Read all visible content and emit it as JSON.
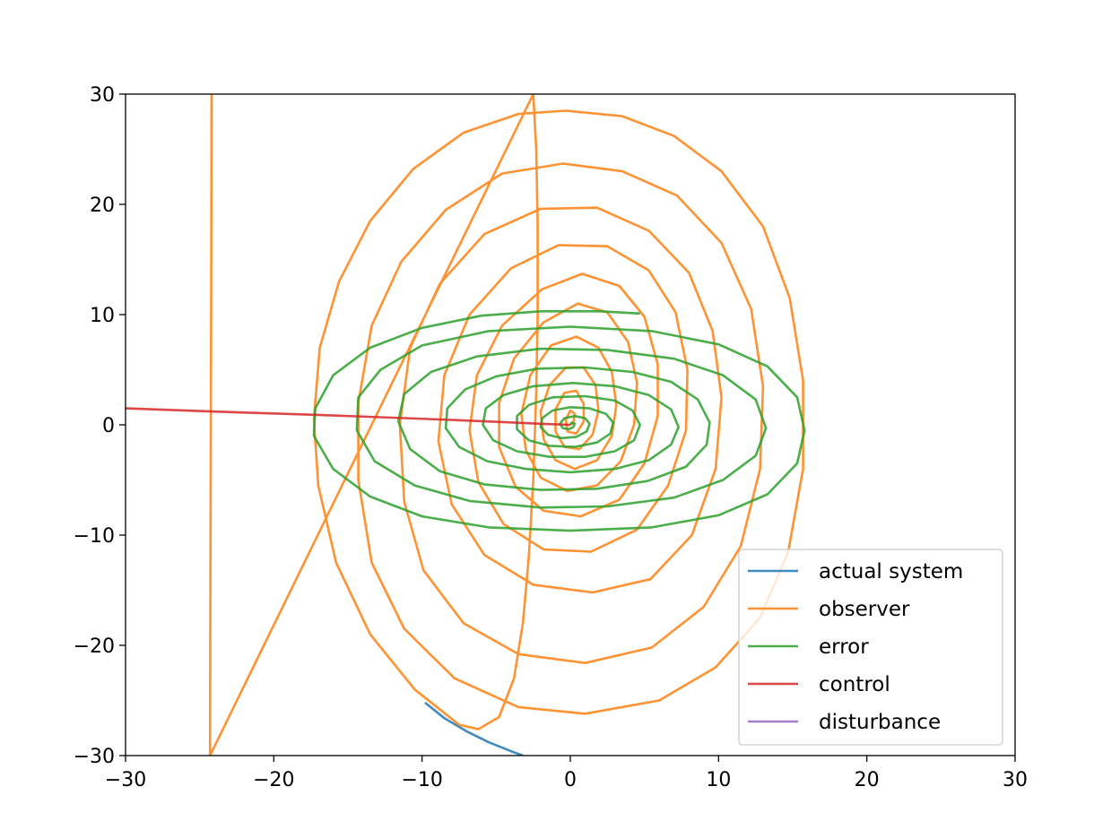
{
  "chart_data": {
    "type": "line",
    "title": "",
    "xlabel": "",
    "ylabel": "",
    "xlim": [
      -30,
      30
    ],
    "ylim": [
      -30,
      30
    ],
    "xticks": [
      -30,
      -20,
      -10,
      0,
      10,
      20,
      30
    ],
    "yticks": [
      -30,
      -20,
      -10,
      0,
      10,
      20,
      30
    ],
    "xtick_labels": [
      "−30",
      "−20",
      "−10",
      "0",
      "10",
      "20",
      "30"
    ],
    "ytick_labels": [
      "−30",
      "−20",
      "−10",
      "0",
      "10",
      "20",
      "30"
    ],
    "grid": false,
    "legend_position": "lower-right",
    "series": [
      {
        "name": "actual system",
        "color": "#1f77b4",
        "points": [
          [
            -9.8,
            -25.2
          ],
          [
            -8.5,
            -26.6
          ],
          [
            -7.0,
            -27.8
          ],
          [
            -5.5,
            -28.8
          ],
          [
            -4.0,
            -29.6
          ],
          [
            -3.2,
            -30.0
          ]
        ]
      },
      {
        "name": "observer",
        "color": "#ff7f0e",
        "points": [
          [
            -24.2,
            30.0
          ],
          [
            -24.22,
            15.0
          ],
          [
            -24.25,
            0.0
          ],
          [
            -24.28,
            -15.0
          ],
          [
            -24.3,
            -30.0
          ],
          [
            -2.5,
            30.0
          ],
          [
            -2.3,
            25.0
          ],
          [
            -2.2,
            18.0
          ],
          [
            -2.2,
            10.0
          ],
          [
            -2.3,
            3.0
          ],
          [
            -2.5,
            -5.0
          ],
          [
            -2.8,
            -12.0
          ],
          [
            -3.2,
            -18.0
          ],
          [
            -3.8,
            -23.0
          ],
          [
            -4.8,
            -26.5
          ],
          [
            -6.2,
            -27.6
          ],
          [
            -7.5,
            -27.2
          ],
          [
            -10.5,
            -24.0
          ],
          [
            -13.5,
            -19.0
          ],
          [
            -15.8,
            -12.5
          ],
          [
            -17.0,
            -5.5
          ],
          [
            -17.3,
            0.5
          ],
          [
            -16.9,
            7.0
          ],
          [
            -15.6,
            13.0
          ],
          [
            -13.5,
            18.5
          ],
          [
            -10.6,
            23.2
          ],
          [
            -7.2,
            26.5
          ],
          [
            -3.5,
            28.2
          ],
          [
            -0.3,
            28.5
          ],
          [
            3.5,
            28.0
          ],
          [
            7.0,
            26.2
          ],
          [
            10.2,
            23.0
          ],
          [
            13.0,
            18.0
          ],
          [
            14.8,
            11.5
          ],
          [
            15.7,
            4.0
          ],
          [
            15.7,
            -4.0
          ],
          [
            14.7,
            -11.5
          ],
          [
            12.8,
            -17.5
          ],
          [
            9.8,
            -22.0
          ],
          [
            6.0,
            -25.0
          ],
          [
            1.0,
            -26.2
          ],
          [
            -3.5,
            -25.6
          ],
          [
            -7.8,
            -23.0
          ],
          [
            -11.2,
            -18.5
          ],
          [
            -13.4,
            -12.5
          ],
          [
            -14.3,
            -5.0
          ],
          [
            -14.3,
            2.0
          ],
          [
            -13.4,
            9.0
          ],
          [
            -11.4,
            14.8
          ],
          [
            -8.4,
            19.5
          ],
          [
            -4.6,
            22.8
          ],
          [
            -0.5,
            23.7
          ],
          [
            3.5,
            23.0
          ],
          [
            7.2,
            20.8
          ],
          [
            10.2,
            16.5
          ],
          [
            12.2,
            10.5
          ],
          [
            13.0,
            3.5
          ],
          [
            12.8,
            -4.0
          ],
          [
            11.5,
            -11.0
          ],
          [
            9.0,
            -16.5
          ],
          [
            5.5,
            -20.2
          ],
          [
            1.0,
            -21.6
          ],
          [
            -3.5,
            -20.8
          ],
          [
            -7.2,
            -18.0
          ],
          [
            -9.9,
            -13.2
          ],
          [
            -11.2,
            -7.0
          ],
          [
            -11.5,
            0.0
          ],
          [
            -10.8,
            7.0
          ],
          [
            -8.8,
            12.8
          ],
          [
            -5.8,
            17.3
          ],
          [
            -2.0,
            19.6
          ],
          [
            1.8,
            19.7
          ],
          [
            5.3,
            17.6
          ],
          [
            8.0,
            13.8
          ],
          [
            9.6,
            8.5
          ],
          [
            10.2,
            2.5
          ],
          [
            9.8,
            -4.0
          ],
          [
            8.2,
            -10.0
          ],
          [
            5.4,
            -14.0
          ],
          [
            1.5,
            -15.2
          ],
          [
            -2.5,
            -14.5
          ],
          [
            -5.8,
            -11.8
          ],
          [
            -8.0,
            -7.2
          ],
          [
            -8.9,
            -1.5
          ],
          [
            -8.5,
            4.5
          ],
          [
            -6.8,
            10.0
          ],
          [
            -4.0,
            14.2
          ],
          [
            -0.8,
            16.3
          ],
          [
            2.5,
            16.2
          ],
          [
            5.3,
            14.0
          ],
          [
            7.1,
            10.2
          ],
          [
            7.9,
            5.0
          ],
          [
            7.8,
            -0.5
          ],
          [
            6.6,
            -5.5
          ],
          [
            4.5,
            -9.5
          ],
          [
            1.4,
            -11.5
          ],
          [
            -1.8,
            -11.3
          ],
          [
            -4.5,
            -9.0
          ],
          [
            -6.2,
            -5.2
          ],
          [
            -6.8,
            -0.5
          ],
          [
            -6.3,
            4.5
          ],
          [
            -4.6,
            9.0
          ],
          [
            -1.9,
            12.3
          ],
          [
            0.8,
            13.7
          ],
          [
            3.3,
            12.6
          ],
          [
            5.0,
            9.8
          ],
          [
            5.9,
            5.5
          ],
          [
            5.9,
            0.8
          ],
          [
            5.0,
            -3.5
          ],
          [
            3.3,
            -6.8
          ],
          [
            0.7,
            -8.3
          ],
          [
            -1.8,
            -7.8
          ],
          [
            -3.7,
            -5.6
          ],
          [
            -4.8,
            -2.0
          ],
          [
            -4.8,
            2.0
          ],
          [
            -3.8,
            6.0
          ],
          [
            -1.8,
            9.3
          ],
          [
            0.5,
            11.0
          ],
          [
            2.5,
            10.2
          ],
          [
            3.9,
            7.5
          ],
          [
            4.5,
            3.8
          ],
          [
            4.3,
            0.0
          ],
          [
            3.4,
            -3.3
          ],
          [
            1.8,
            -5.5
          ],
          [
            -0.2,
            -6.0
          ],
          [
            -2.0,
            -4.8
          ],
          [
            -3.0,
            -2.3
          ],
          [
            -3.3,
            1.0
          ],
          [
            -2.7,
            4.5
          ],
          [
            -1.3,
            7.2
          ],
          [
            0.4,
            8.0
          ],
          [
            1.9,
            7.0
          ],
          [
            2.8,
            4.8
          ],
          [
            3.1,
            1.8
          ],
          [
            2.8,
            -1.0
          ],
          [
            1.8,
            -3.2
          ],
          [
            0.3,
            -4.0
          ],
          [
            -1.0,
            -3.2
          ],
          [
            -1.8,
            -1.3
          ],
          [
            -2.0,
            1.2
          ],
          [
            -1.4,
            3.6
          ],
          [
            -0.3,
            5.2
          ],
          [
            0.9,
            5.2
          ],
          [
            1.7,
            3.6
          ],
          [
            1.9,
            1.3
          ],
          [
            1.5,
            -0.9
          ],
          [
            0.6,
            -2.2
          ],
          [
            -0.4,
            -2.0
          ],
          [
            -1.0,
            -0.6
          ],
          [
            -1.0,
            1.4
          ],
          [
            -0.4,
            2.9
          ],
          [
            0.4,
            3.1
          ],
          [
            0.9,
            1.9
          ],
          [
            0.9,
            0.3
          ],
          [
            0.4,
            -0.8
          ],
          [
            -0.2,
            -0.6
          ],
          [
            -0.3,
            0.5
          ],
          [
            0.0,
            1.3
          ],
          [
            0.3,
            1.0
          ],
          [
            0.2,
            0.2
          ],
          [
            0.0,
            0.0
          ]
        ]
      },
      {
        "name": "error",
        "color": "#2ca02c",
        "points": [
          [
            4.7,
            10.1
          ],
          [
            2.0,
            10.3
          ],
          [
            -2.0,
            10.3
          ],
          [
            -6.0,
            9.9
          ],
          [
            -10.0,
            8.8
          ],
          [
            -13.5,
            7.0
          ],
          [
            -16.0,
            4.5
          ],
          [
            -17.2,
            1.5
          ],
          [
            -17.3,
            -1.0
          ],
          [
            -16.0,
            -4.0
          ],
          [
            -13.5,
            -6.5
          ],
          [
            -10.0,
            -8.3
          ],
          [
            -5.5,
            -9.3
          ],
          [
            0.0,
            -9.6
          ],
          [
            5.5,
            -9.3
          ],
          [
            10.0,
            -8.2
          ],
          [
            13.3,
            -6.3
          ],
          [
            15.3,
            -3.5
          ],
          [
            15.8,
            -0.5
          ],
          [
            15.3,
            2.5
          ],
          [
            13.3,
            5.3
          ],
          [
            10.0,
            7.3
          ],
          [
            5.5,
            8.5
          ],
          [
            0.0,
            8.9
          ],
          [
            -5.5,
            8.5
          ],
          [
            -10.0,
            7.2
          ],
          [
            -12.8,
            5.0
          ],
          [
            -14.3,
            2.5
          ],
          [
            -14.4,
            -0.5
          ],
          [
            -13.2,
            -3.3
          ],
          [
            -10.5,
            -5.5
          ],
          [
            -6.8,
            -6.9
          ],
          [
            -2.0,
            -7.5
          ],
          [
            2.5,
            -7.4
          ],
          [
            7.0,
            -6.6
          ],
          [
            10.3,
            -5.0
          ],
          [
            12.5,
            -2.8
          ],
          [
            13.2,
            -0.3
          ],
          [
            12.5,
            2.3
          ],
          [
            10.3,
            4.5
          ],
          [
            7.0,
            6.0
          ],
          [
            2.5,
            6.8
          ],
          [
            -2.0,
            6.9
          ],
          [
            -6.3,
            6.2
          ],
          [
            -9.4,
            4.8
          ],
          [
            -11.2,
            2.8
          ],
          [
            -11.6,
            0.3
          ],
          [
            -10.8,
            -2.2
          ],
          [
            -8.8,
            -4.2
          ],
          [
            -5.8,
            -5.4
          ],
          [
            -2.0,
            -5.9
          ],
          [
            1.8,
            -5.8
          ],
          [
            5.2,
            -5.1
          ],
          [
            7.8,
            -3.8
          ],
          [
            9.2,
            -1.8
          ],
          [
            9.4,
            0.2
          ],
          [
            8.6,
            2.3
          ],
          [
            6.8,
            3.9
          ],
          [
            4.2,
            4.8
          ],
          [
            1.0,
            5.2
          ],
          [
            -2.2,
            5.1
          ],
          [
            -5.0,
            4.4
          ],
          [
            -7.1,
            3.2
          ],
          [
            -8.3,
            1.5
          ],
          [
            -8.4,
            -0.3
          ],
          [
            -7.5,
            -2.0
          ],
          [
            -5.6,
            -3.3
          ],
          [
            -3.0,
            -4.0
          ],
          [
            0.0,
            -4.3
          ],
          [
            3.0,
            -4.0
          ],
          [
            5.3,
            -3.2
          ],
          [
            6.8,
            -1.8
          ],
          [
            7.3,
            -0.2
          ],
          [
            6.8,
            1.4
          ],
          [
            5.3,
            2.7
          ],
          [
            3.0,
            3.5
          ],
          [
            0.2,
            3.8
          ],
          [
            -2.5,
            3.5
          ],
          [
            -4.5,
            2.7
          ],
          [
            -5.7,
            1.5
          ],
          [
            -5.9,
            0.0
          ],
          [
            -5.2,
            -1.4
          ],
          [
            -3.6,
            -2.4
          ],
          [
            -1.4,
            -2.9
          ],
          [
            1.0,
            -2.9
          ],
          [
            3.0,
            -2.4
          ],
          [
            4.3,
            -1.4
          ],
          [
            4.7,
            0.0
          ],
          [
            4.2,
            1.3
          ],
          [
            3.0,
            2.2
          ],
          [
            1.0,
            2.6
          ],
          [
            -1.2,
            2.5
          ],
          [
            -2.8,
            1.8
          ],
          [
            -3.6,
            0.8
          ],
          [
            -3.6,
            -0.4
          ],
          [
            -2.8,
            -1.4
          ],
          [
            -1.4,
            -1.9
          ],
          [
            0.3,
            -2.0
          ],
          [
            1.8,
            -1.6
          ],
          [
            2.7,
            -0.8
          ],
          [
            2.9,
            0.2
          ],
          [
            2.4,
            1.0
          ],
          [
            1.3,
            1.5
          ],
          [
            0.0,
            1.6
          ],
          [
            -1.2,
            1.3
          ],
          [
            -1.9,
            0.6
          ],
          [
            -2.0,
            -0.2
          ],
          [
            -1.5,
            -0.9
          ],
          [
            -0.6,
            -1.2
          ],
          [
            0.4,
            -1.1
          ],
          [
            1.1,
            -0.6
          ],
          [
            1.3,
            0.1
          ],
          [
            1.0,
            0.6
          ],
          [
            0.3,
            0.8
          ],
          [
            -0.4,
            0.6
          ],
          [
            -0.7,
            0.1
          ],
          [
            -0.5,
            -0.3
          ],
          [
            -0.1,
            -0.4
          ],
          [
            0.2,
            -0.2
          ],
          [
            0.3,
            0.1
          ],
          [
            0.1,
            0.2
          ],
          [
            0.0,
            0.0
          ]
        ]
      },
      {
        "name": "control",
        "color": "#d62728",
        "points": [
          [
            -30.0,
            1.5
          ],
          [
            -24.0,
            1.2
          ],
          [
            -17.0,
            0.9
          ],
          [
            -12.0,
            0.65
          ],
          [
            -8.0,
            0.45
          ],
          [
            -4.0,
            0.22
          ],
          [
            -2.0,
            0.1
          ],
          [
            0.0,
            0.0
          ]
        ]
      },
      {
        "name": "disturbance",
        "color": "#9467bd",
        "points": []
      }
    ]
  }
}
